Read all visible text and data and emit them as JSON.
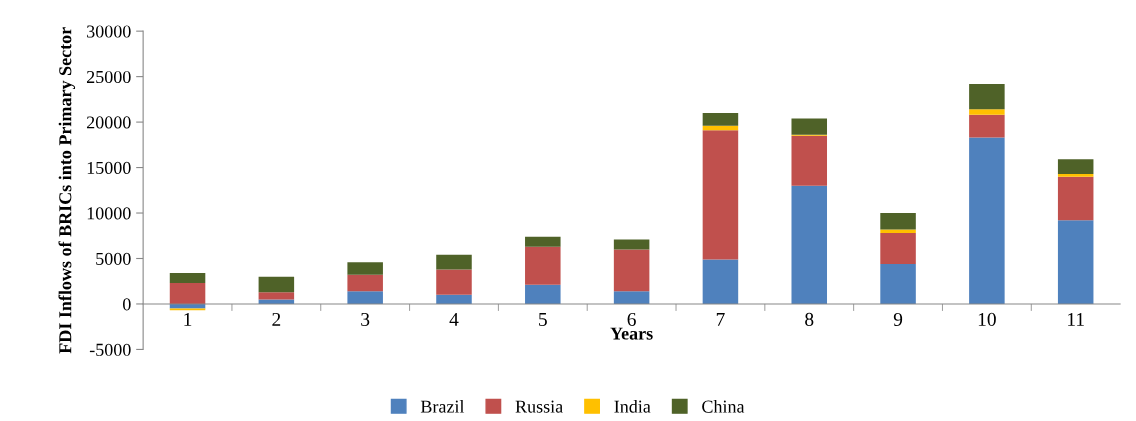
{
  "chart_data": {
    "type": "bar",
    "stacked": true,
    "xlabel": "Years",
    "ylabel": "FDI Inflows of BRICs into Primary Sector",
    "categories": [
      "1",
      "2",
      "3",
      "4",
      "5",
      "6",
      "7",
      "8",
      "9",
      "10",
      "11"
    ],
    "series": [
      {
        "name": "Brazil",
        "color": "#4f81bd",
        "values": [
          -500,
          500,
          1400,
          1000,
          2100,
          1400,
          4900,
          13000,
          4400,
          18300,
          9200
        ]
      },
      {
        "name": "Russia",
        "color": "#c0504d",
        "values": [
          2300,
          800,
          1800,
          2800,
          4200,
          4600,
          14200,
          5500,
          3400,
          2500,
          4800
        ]
      },
      {
        "name": "India",
        "color": "#ffc000",
        "values": [
          -200,
          0,
          0,
          0,
          0,
          0,
          500,
          100,
          400,
          600,
          300
        ]
      },
      {
        "name": "China",
        "color": "#4f6228",
        "values": [
          1100,
          1700,
          1400,
          1600,
          1100,
          1100,
          1400,
          1800,
          1800,
          2800,
          1600
        ]
      }
    ],
    "ylim": [
      -5000,
      30000
    ],
    "yticks": [
      -5000,
      0,
      5000,
      10000,
      15000,
      20000,
      25000,
      30000
    ],
    "legend": "bottom"
  }
}
